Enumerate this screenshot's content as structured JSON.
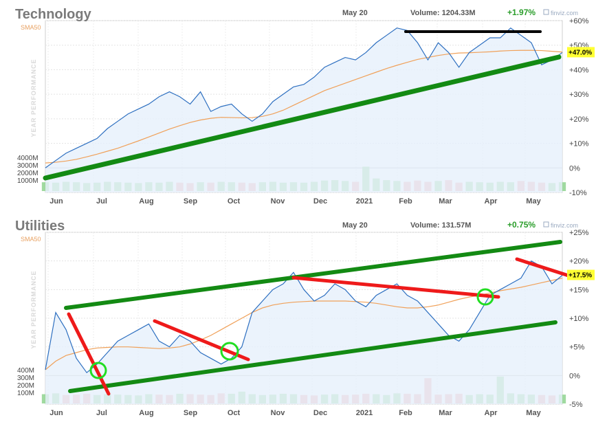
{
  "chart_data": [
    {
      "type": "line",
      "title": "Technology",
      "header": {
        "date": "May 20",
        "volume": "Volume: 1204.33M",
        "change": "+1.97%"
      },
      "brand": "finviz.com",
      "ylabel": "YEAR PERFORMANCE",
      "ylim": [
        -10,
        60
      ],
      "y_ticks": [
        "-10%",
        "0%",
        "+10%",
        "+20%",
        "+30%",
        "+40%",
        "+50%",
        "+60%"
      ],
      "volume_ticks": [
        "4000M",
        "3000M",
        "2000M",
        "1000M"
      ],
      "months": [
        "Jun",
        "Jul",
        "Aug",
        "Sep",
        "Oct",
        "Nov",
        "Dec",
        "2021",
        "Feb",
        "Mar",
        "Apr",
        "May"
      ],
      "last_label": "+47.0%",
      "series": [
        {
          "name": "SMA50",
          "values": [
            2,
            2.3,
            2.8,
            3.5,
            4.5,
            5.6,
            6.8,
            8,
            9.5,
            11,
            12.6,
            14.2,
            15.8,
            17.2,
            18.5,
            19.5,
            20.2,
            20.6,
            20.5,
            20.4,
            20.5,
            21,
            22,
            23.5,
            25.5,
            27.5,
            29.5,
            31.5,
            33,
            34.5,
            36,
            37.5,
            39,
            40.5,
            41.8,
            43,
            44.2,
            45,
            45.8,
            46.4,
            46.8,
            46.9,
            47.1,
            47.3,
            47.6,
            47.8,
            47.9,
            47.9,
            47.8,
            47.5,
            47.2
          ]
        },
        {
          "name": "Performance",
          "values": [
            0,
            3,
            6,
            8,
            10,
            12,
            16,
            19,
            22,
            24,
            26,
            29,
            31,
            29,
            26,
            31,
            23,
            25,
            26,
            22,
            19,
            22,
            27,
            30,
            33,
            34,
            37,
            41,
            43,
            45,
            44,
            47,
            51,
            54,
            57,
            56,
            51,
            44,
            51,
            47,
            41,
            47,
            50,
            53,
            53,
            57,
            54,
            51,
            42,
            44,
            47
          ]
        }
      ],
      "volume": [
        1050,
        1000,
        1100,
        1050,
        950,
        1000,
        1100,
        1050,
        1000,
        950,
        1050,
        1000,
        1100,
        1000,
        950,
        1050,
        1000,
        1100,
        1050,
        1000,
        950,
        1050,
        1100,
        1000,
        1050,
        1000,
        1100,
        1250,
        1300,
        1200,
        1100,
        2900,
        1500,
        1300,
        1200,
        1100,
        1250,
        1100,
        1200,
        1300,
        1000,
        1100,
        1050,
        1000,
        1100,
        1050,
        1200,
        1100,
        1000,
        950,
        1050
      ]
    },
    {
      "type": "line",
      "title": "Utilities",
      "header": {
        "date": "May 20",
        "volume": "Volume: 131.57M",
        "change": "+0.75%"
      },
      "brand": "finviz.com",
      "ylabel": "YEAR PERFORMANCE",
      "ylim": [
        -5,
        25
      ],
      "y_ticks": [
        "-5%",
        "0%",
        "+5%",
        "+10%",
        "+15%",
        "+20%",
        "+25%"
      ],
      "volume_ticks": [
        "400M",
        "300M",
        "200M",
        "100M"
      ],
      "months": [
        "Jun",
        "Jul",
        "Aug",
        "Sep",
        "Oct",
        "Nov",
        "Dec",
        "2021",
        "Feb",
        "Mar",
        "Apr",
        "May"
      ],
      "last_label": "+17.5%",
      "series": [
        {
          "name": "SMA50",
          "values": [
            1,
            2.5,
            3.5,
            4,
            4.5,
            4.8,
            4.9,
            5,
            5,
            4.9,
            4.8,
            4.7,
            4.8,
            5,
            5.5,
            6.2,
            7,
            8,
            9,
            10,
            11,
            11.8,
            12.3,
            12.6,
            12.8,
            12.9,
            13,
            13,
            13,
            13,
            12.9,
            12.8,
            12.6,
            12.3,
            12,
            11.8,
            11.8,
            12,
            12.3,
            12.8,
            13.3,
            13.7,
            14,
            14.4,
            14.8,
            15.1,
            15.4,
            15.8,
            16.2,
            16.6,
            17
          ]
        },
        {
          "name": "Performance",
          "values": [
            1,
            11,
            8,
            3,
            0.5,
            2,
            4,
            6,
            7,
            8,
            9,
            6,
            5,
            7,
            6,
            4,
            3,
            2,
            3,
            5,
            11,
            13,
            15,
            16,
            18,
            15,
            13,
            14,
            16,
            15,
            13,
            12,
            14,
            15,
            16,
            14,
            13,
            11,
            9,
            7,
            6,
            8,
            11,
            14,
            15,
            16,
            17,
            20,
            19,
            16,
            17.5
          ]
        }
      ],
      "volume": [
        110,
        120,
        100,
        105,
        115,
        100,
        110,
        105,
        100,
        95,
        110,
        105,
        100,
        115,
        110,
        105,
        100,
        120,
        115,
        140,
        110,
        100,
        105,
        115,
        110,
        100,
        95,
        105,
        110,
        100,
        105,
        115,
        110,
        100,
        120,
        115,
        110,
        300,
        105,
        110,
        115,
        100,
        110,
        105,
        320,
        120,
        110,
        105,
        100,
        95,
        105
      ]
    }
  ]
}
